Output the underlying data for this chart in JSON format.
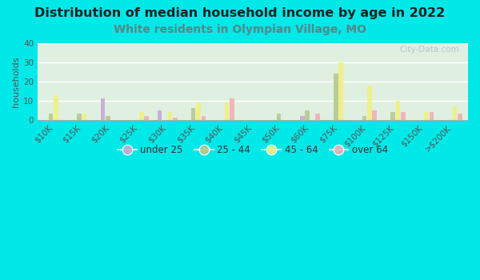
{
  "title": "Distribution of median household income by age in 2022",
  "subtitle": "White residents in Olympian Village, MO",
  "ylabel": "households",
  "background_color": "#00e8e8",
  "plot_bg_gradient_left": "#c8e8c0",
  "plot_bg_gradient_right": "#f0f8f0",
  "watermark": "① City-Data.com",
  "ylim": [
    0,
    40
  ],
  "yticks": [
    0,
    10,
    20,
    30,
    40
  ],
  "categories": [
    "$10K",
    "$15K",
    "$20K",
    "$25K",
    "$30K",
    "$35K",
    "$40K",
    "$45K",
    "$50K",
    "$60K",
    "$75K",
    "$100K",
    "$125K",
    "$150K",
    ">$200K"
  ],
  "age_groups": [
    "under 25",
    "25 - 44",
    "45 - 64",
    "over 64"
  ],
  "colors": {
    "under 25": "#c8a8d8",
    "25 - 44": "#b8c890",
    "45 - 64": "#f0f080",
    "over 64": "#f0b0b8"
  },
  "data": {
    "under 25": [
      0,
      0,
      11,
      0,
      5,
      0,
      0,
      0,
      0,
      2,
      0,
      0,
      0,
      0,
      0
    ],
    "25 - 44": [
      3,
      3,
      2,
      0,
      0,
      6,
      0,
      0,
      3,
      5,
      24,
      2,
      4,
      0,
      0
    ],
    "45 - 64": [
      13,
      3,
      0,
      4,
      4,
      9,
      9,
      0,
      0,
      0,
      30,
      18,
      10,
      4,
      7
    ],
    "over 64": [
      0,
      0,
      0,
      2,
      1,
      2,
      11,
      0,
      0,
      3,
      0,
      5,
      4,
      4,
      3
    ]
  },
  "title_fontsize": 11.5,
  "subtitle_fontsize": 10,
  "title_color": "#222222",
  "subtitle_color": "#558888",
  "axis_fontsize": 7.5,
  "ylabel_fontsize": 8
}
